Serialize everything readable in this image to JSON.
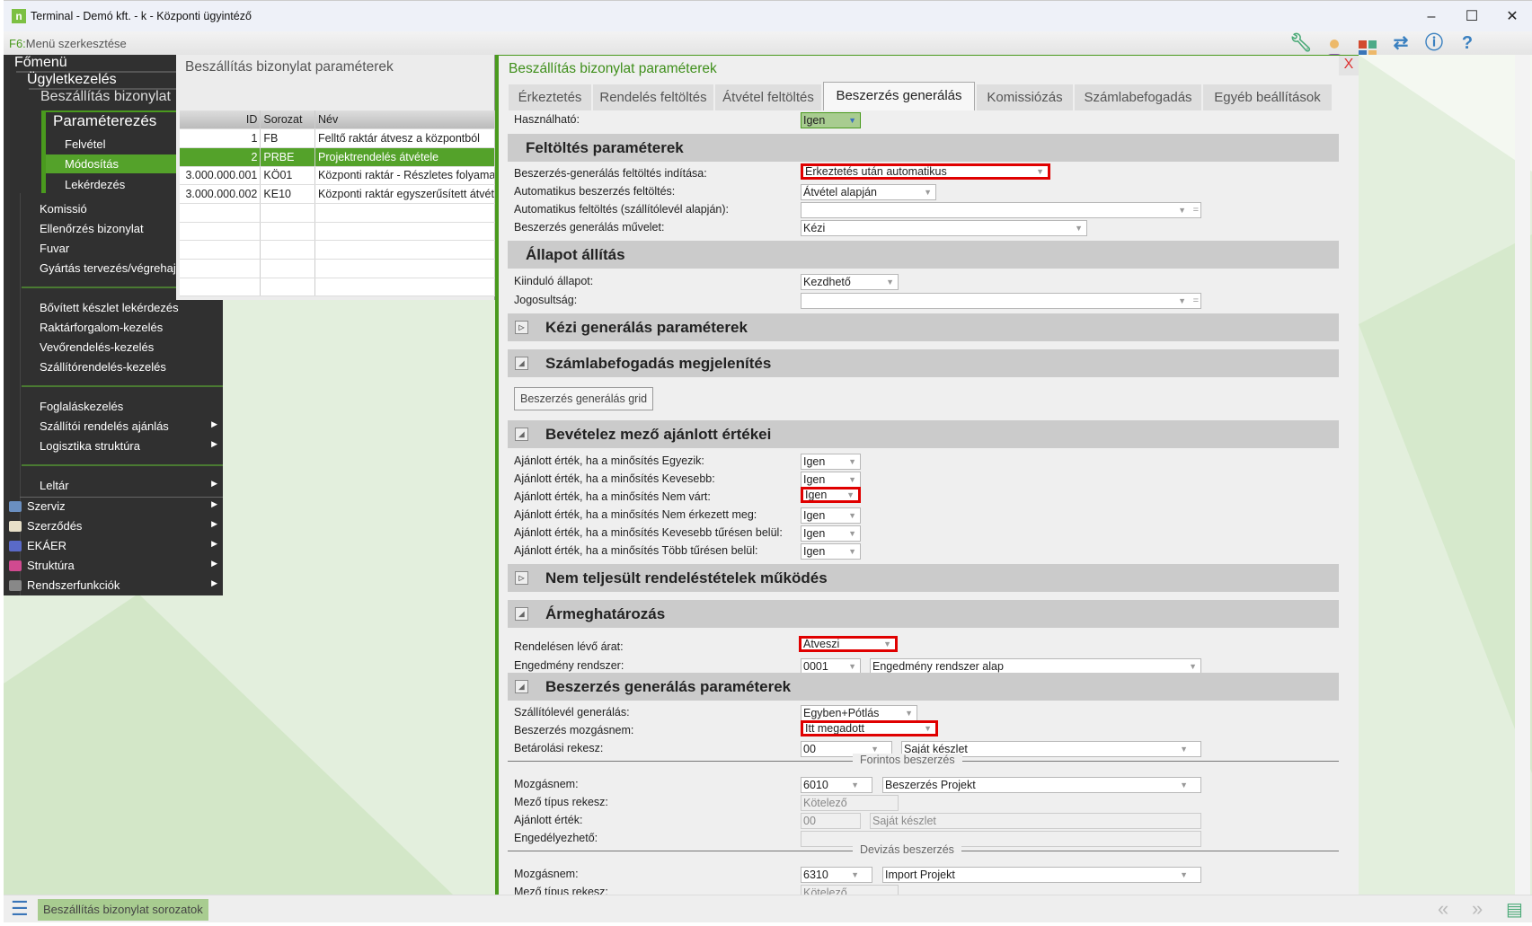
{
  "window": {
    "title": "Terminal - Demó kft. - k - Központi ügyintéző",
    "minimize": "–",
    "maximize": "☐",
    "close": "✕"
  },
  "toolbar": {
    "f6_key": "F6:",
    "f6_label": "Menü szerkesztése",
    "icons": [
      "wrench-icon",
      "user-icon",
      "tiles-icon",
      "swap-icon",
      "info-icon",
      "help-icon"
    ]
  },
  "menu": {
    "root": "Főmenü",
    "level1": "Ügyletkezelés",
    "level2": "Beszállítás bizonylat",
    "level3": "Paraméterezés",
    "level3_items": [
      "Felvétel",
      "Módosítás",
      "Lekérdezés"
    ],
    "items_a": [
      "Komissió",
      "Ellenőrzés bizonylat",
      "Fuvar",
      "Gyártás tervezés/végrehajtás"
    ],
    "items_b": [
      "Bővített készlet lekérdezés",
      "Raktárforgalom-kezelés",
      "Vevőrendelés-kezelés",
      "Szállítórendelés-kezelés"
    ],
    "items_c": [
      "Foglaláskezelés",
      "Szállítói rendelés ajánlás",
      "Logisztika struktúra"
    ],
    "items_d": [
      "Leltár"
    ],
    "top_items": [
      "Szerviz",
      "Szerződés",
      "EKÁER",
      "Struktúra",
      "Rendszerfunkciók"
    ]
  },
  "grid": {
    "title": "Beszállítás bizonylat paraméterek",
    "columns": [
      "ID",
      "Sorozat",
      "Név"
    ],
    "rows": [
      [
        "1",
        "FB",
        "Felltő raktár átvesz a központból"
      ],
      [
        "2",
        "PRBE",
        "Projektrendelés átvétele"
      ],
      [
        "3.000.000.001",
        "KÖ01",
        "Központi raktár - Részletes folyamat"
      ],
      [
        "3.000.000.002",
        "KE10",
        "Központi raktár egyszerűsített átvétel"
      ]
    ],
    "selected_row": 1
  },
  "dialog": {
    "title": "Beszállítás bizonylat paraméterek",
    "close": "X",
    "tabs": [
      "Érkeztetés",
      "Rendelés feltöltés",
      "Átvétel feltöltés",
      "Beszerzés generálás",
      "Komissiózás",
      "Számlabefogadás",
      "Egyéb beállítások"
    ],
    "active_tab": 3,
    "usable": {
      "label": "Használható:",
      "value": "Igen"
    },
    "sec_fill": {
      "title": "Feltöltés paraméterek",
      "r1": {
        "label": "Beszerzés-generálás feltöltés indítása:",
        "value": "Érkeztetés után automatikus"
      },
      "r2": {
        "label": "Automatikus beszerzés feltöltés:",
        "value": "Átvétel alapján"
      },
      "r3": {
        "label": "Automatikus feltöltés (szállítólevél alapján):",
        "value": ""
      },
      "r4": {
        "label": "Beszerzés generálás művelet:",
        "value": "Kézi"
      }
    },
    "sec_state": {
      "title": "Állapot állítás",
      "r1": {
        "label": "Kiinduló állapot:",
        "value": "Kezdhető"
      },
      "r2": {
        "label": "Jogosultság:",
        "value": ""
      }
    },
    "sec_manual": {
      "title": "Kézi generálás paraméterek"
    },
    "sec_invoice": {
      "title": "Számlabefogadás megjelenítés",
      "button": "Beszerzés generálás grid"
    },
    "sec_recv": {
      "title": "Bevételez mező ajánlott értékei",
      "rows": [
        {
          "label": "Ajánlott érték, ha a minősítés Egyezik:",
          "value": "Igen"
        },
        {
          "label": "Ajánlott érték, ha a minősítés Kevesebb:",
          "value": "Igen"
        },
        {
          "label": "Ajánlott érték, ha a minősítés Nem várt:",
          "value": "Igen"
        },
        {
          "label": "Ajánlott érték, ha a minősítés Nem érkezett meg:",
          "value": "Igen"
        },
        {
          "label": "Ajánlott érték, ha a minősítés Kevesebb tűrésen belül:",
          "value": "Igen"
        },
        {
          "label": "Ajánlott érték, ha a minősítés Több tűrésen belül:",
          "value": "Igen"
        }
      ]
    },
    "sec_unfulfilled": {
      "title": "Nem teljesült rendeléstételek működés"
    },
    "sec_price": {
      "title": "Ármeghatározás",
      "r1": {
        "label": "Rendelésen lévő árat:",
        "value": "Átveszi"
      },
      "r2": {
        "label": "Engedmény rendszer:",
        "code": "0001",
        "value": "Engedmény rendszer alap"
      }
    },
    "sec_gen": {
      "title": "Beszerzés generálás paraméterek",
      "r1": {
        "label": "Szállítólevél generálás:",
        "value": "Egyben+Pótlás"
      },
      "r2": {
        "label": "Beszerzés mozgásnem:",
        "value": "Itt megadott"
      },
      "r3": {
        "label": "Betárolási rekesz:",
        "code": "00",
        "value": "Saját készlet"
      },
      "huf": {
        "title": "Forintos beszerzés",
        "move_label": "Mozgásnem:",
        "move_code": "6010",
        "move_value": "Beszerzés Projekt",
        "type_label": "Mező típus rekesz:",
        "type_value": "Kötelező",
        "rec_label": "Ajánlott érték:",
        "rec_code": "00",
        "rec_value": "Saját készlet",
        "appr_label": "Engedélyezhető:"
      },
      "fx": {
        "title": "Devizás beszerzés",
        "move_label": "Mozgásnem:",
        "move_code": "6310",
        "move_value": "Import Projekt",
        "type_label": "Mező típus rekesz:",
        "type_value": "Kötelező"
      }
    }
  },
  "status": {
    "tab": "Beszállítás bizonylat sorozatok"
  },
  "colors": {
    "accent": "#4a9a1e",
    "highlight": "#e00000",
    "menu_bg": "#303030"
  }
}
